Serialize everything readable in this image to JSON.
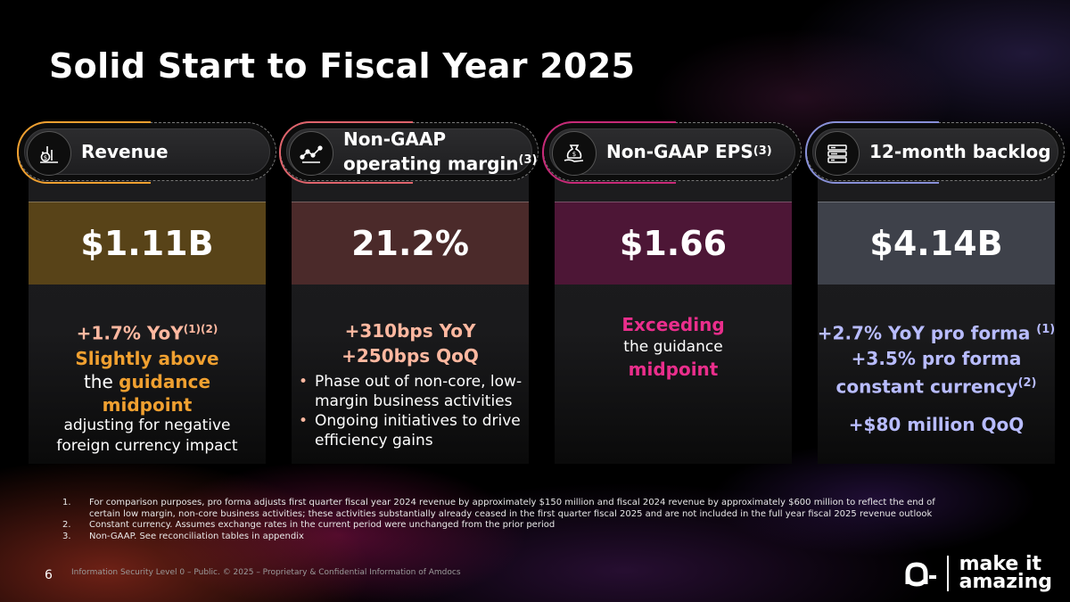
{
  "title": "Solid Start to Fiscal Year 2025",
  "cards": [
    {
      "header": "Revenue",
      "value": "$1.11B",
      "accent": "#f0a030",
      "band": "#584318",
      "lines": {
        "l1a": "+1.7% YoY",
        "l1b": "(1)(2)",
        "l2": "Slightly above",
        "l3a": "the ",
        "l3b": "guidance",
        "l4": "midpoint",
        "l5": "adjusting for negative",
        "l6": "foreign currency impact"
      }
    },
    {
      "header1": "Non-GAAP",
      "header2": "operating margin",
      "header2sup": "(3)",
      "value": "21.2%",
      "accent": "#e0646c",
      "band": "#4b2a2a",
      "lines": {
        "l1": "+310bps YoY",
        "l2": "+250bps QoQ",
        "b1": "Phase out of non-core, low-margin business activities",
        "b2": "Ongoing initiatives to drive efficiency gains",
        "bullet": "•"
      }
    },
    {
      "header": "Non-GAAP EPS",
      "headersup": "(3)",
      "value": "$1.66",
      "accent": "#c82a78",
      "band": "#4d1636",
      "lines": {
        "l1": "Exceeding",
        "l2": "the guidance",
        "l3": "midpoint"
      }
    },
    {
      "header": "12-month backlog",
      "value": "$4.14B",
      "accent": "#8890d8",
      "band": "#3e414a",
      "lines": {
        "l1": "+2.7% YoY pro forma",
        "l1sup": "(1)",
        "l2": "+3.5% pro forma",
        "l3": "constant currency",
        "l3sup": "(2)",
        "l4": "+$80 million QoQ"
      }
    }
  ],
  "footnotes": [
    {
      "num": "1.",
      "text": "For comparison purposes, pro forma adjusts first quarter fiscal year 2024 revenue by approximately $150 million and fiscal 2024 revenue by approximately $600 million to reflect the end of certain low margin, non-core business activities; these activities substantially already ceased in the first quarter fiscal 2025 and are not included in the full year fiscal 2025 revenue outlook"
    },
    {
      "num": "2.",
      "text": "Constant currency. Assumes exchange rates in the current period were unchanged from the prior period"
    },
    {
      "num": "3.",
      "text": "Non-GAAP. See reconciliation tables in appendix"
    }
  ],
  "page_number": "6",
  "footer": "Information Security Level 0 – Public. © 2025 – Proprietary & Confidential Information of Amdocs",
  "logo": {
    "line1": "make it",
    "line2": "amazing"
  }
}
